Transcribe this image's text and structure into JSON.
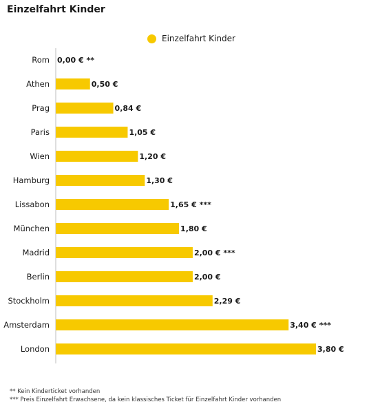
{
  "title": "Einzelfahrt Kinder",
  "colors": {
    "bar": "#f7c900",
    "axis": "#bdbdbd",
    "text": "#1a1a1a"
  },
  "chart_data": {
    "type": "bar",
    "orientation": "horizontal",
    "categories": [
      "Rom",
      "Athen",
      "Prag",
      "Paris",
      "Wien",
      "Hamburg",
      "Lissabon",
      "München",
      "Madrid",
      "Berlin",
      "Stockholm",
      "Amsterdam",
      "London"
    ],
    "series": [
      {
        "name": "Einzelfahrt Kinder",
        "values": [
          0.0,
          0.5,
          0.84,
          1.05,
          1.2,
          1.3,
          1.65,
          1.8,
          2.0,
          2.0,
          2.29,
          3.4,
          3.8
        ]
      }
    ],
    "data_labels": [
      "0,00 € **",
      "0,50 €",
      "0,84 €",
      "1,05 €",
      "1,20 €",
      "1,30 €",
      "1,65 € ***",
      "1,80 €",
      "2,00 € ***",
      "2,00 €",
      "2,29 €",
      "3,40 € ***",
      "3,80 €"
    ],
    "legend_position": "top",
    "grid": false,
    "xlim": [
      0,
      3.8
    ]
  },
  "footnotes": [
    "** Kein Kinderticket vorhanden",
    "*** Preis Einzelfahrt Erwachsene, da kein klassisches Ticket für Einzelfahrt Kinder vorhanden"
  ]
}
